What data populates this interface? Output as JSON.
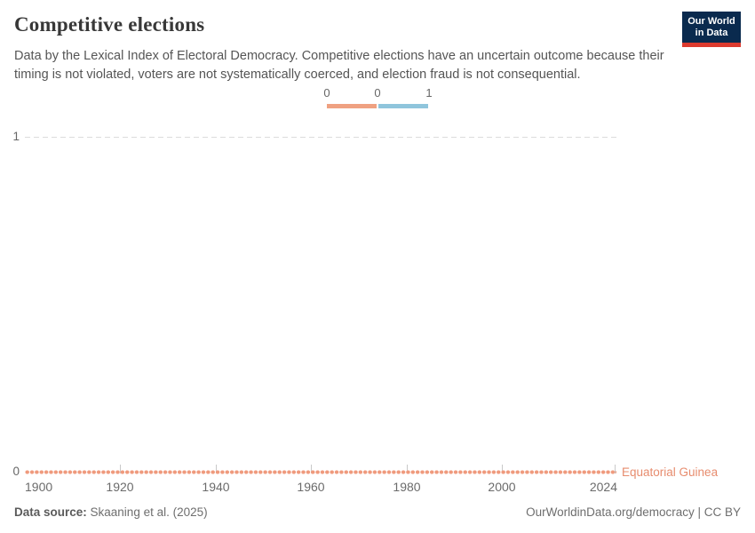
{
  "header": {
    "title": "Competitive elections",
    "subtitle": "Data by the Lexical Index of Electoral Democracy. Competitive elections have an uncertain outcome because their timing is not violated, voters are not systematically coerced, and election fraud is not consequential.",
    "logo": {
      "line1": "Our World",
      "line2": "in Data",
      "bg_color": "#0a2a4e",
      "accent_color": "#dc3a2e"
    }
  },
  "legend": {
    "tick_labels": [
      "0",
      "0",
      "1"
    ],
    "bins": [
      {
        "value": 0,
        "color": "#efa181"
      },
      {
        "value": 1,
        "color": "#8fc5dc"
      }
    ]
  },
  "chart": {
    "y_axis": {
      "top_label": "1",
      "bottom_label": "0"
    },
    "x_axis": {
      "labels": [
        "1900",
        "1920",
        "1940",
        "1960",
        "1980",
        "2000",
        "2024"
      ]
    },
    "entity_label": "Equatorial Guinea",
    "line_color": "#ef9a7d"
  },
  "chart_data": {
    "type": "line",
    "title": "Competitive elections",
    "subtitle": "Data by the Lexical Index of Electoral Democracy. Competitive elections have an uncertain outcome because their timing is not violated, voters are not systematically coerced, and election fraud is not consequential.",
    "series": [
      {
        "name": "Equatorial Guinea",
        "color": "#ef9a7d",
        "x_start": 1900,
        "x_end": 2024,
        "x_step": 1,
        "constant_value": 0,
        "markers": true
      }
    ],
    "xlabel": "",
    "ylabel": "",
    "xlim": [
      1900,
      2024
    ],
    "ylim": [
      0,
      1
    ],
    "x_ticks": [
      1900,
      1920,
      1940,
      1960,
      1980,
      2000,
      2024
    ],
    "y_ticks": [
      0,
      1
    ],
    "grid": "horizontal dashed gridline at y=1 only",
    "legend_position": "top-center"
  },
  "footer": {
    "source_label": "Data source:",
    "source_value": " Skaaning et al. (2025)",
    "right_text": "OurWorldinData.org/democracy | CC BY"
  }
}
